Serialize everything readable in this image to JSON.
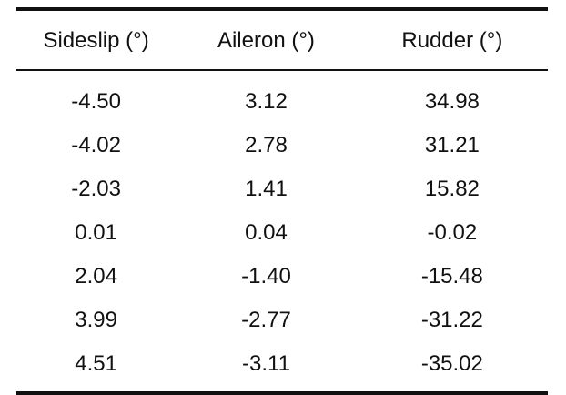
{
  "table": {
    "headers": [
      "Sideslip (°)",
      "Aileron (°)",
      "Rudder (°)"
    ],
    "rows": [
      [
        "-4.50",
        "3.12",
        "34.98"
      ],
      [
        "-4.02",
        "2.78",
        "31.21"
      ],
      [
        "-2.03",
        "1.41",
        "15.82"
      ],
      [
        "0.01",
        "0.04",
        "-0.02"
      ],
      [
        "2.04",
        "-1.40",
        "-15.48"
      ],
      [
        "3.99",
        "-2.77",
        "-31.22"
      ],
      [
        "4.51",
        "-3.11",
        "-35.02"
      ]
    ]
  }
}
